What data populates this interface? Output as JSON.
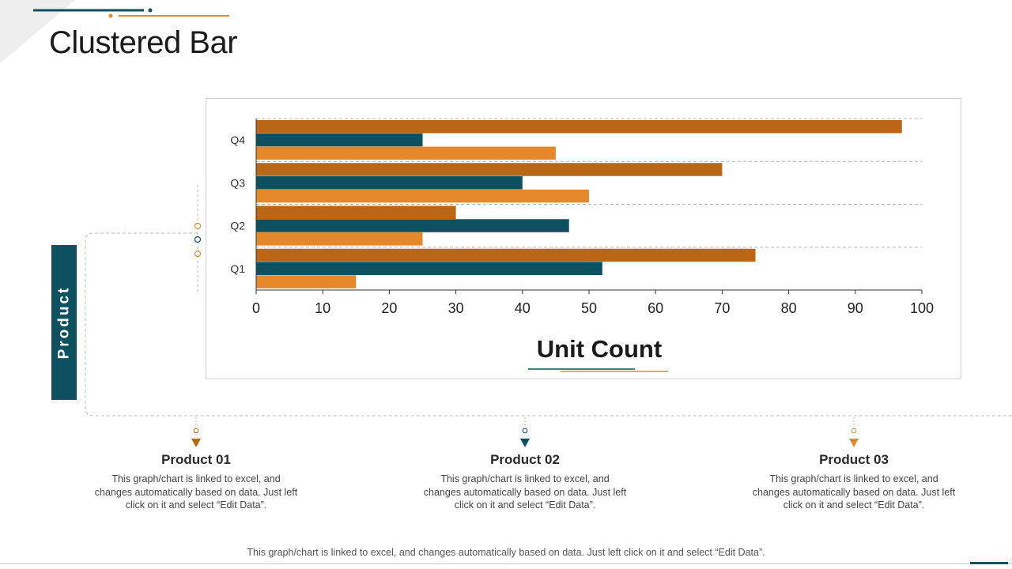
{
  "title": "Clustered Bar",
  "side_label": "Product",
  "colors": {
    "product01": "#b96617",
    "product02": "#0d5060",
    "product03": "#e5882a",
    "gridline": "#b5b5b5",
    "connector": "#b8b8b8"
  },
  "chart_data": {
    "type": "bar",
    "orientation": "horizontal",
    "categories": [
      "Q1",
      "Q2",
      "Q3",
      "Q4"
    ],
    "series": [
      {
        "name": "Product 01",
        "values": [
          75,
          30,
          70,
          97
        ]
      },
      {
        "name": "Product 02",
        "values": [
          52,
          47,
          40,
          25
        ]
      },
      {
        "name": "Product 03",
        "values": [
          15,
          25,
          50,
          45
        ]
      }
    ],
    "xlabel": "Unit Count",
    "xlim": [
      0,
      100
    ],
    "xticks": [
      0,
      10,
      20,
      30,
      40,
      50,
      60,
      70,
      80,
      90,
      100
    ],
    "grid": "dashed horizontal separators"
  },
  "products": [
    {
      "name": "Product 01",
      "text": "This graph/chart is linked to excel, and changes automatically based on data. Just left click on it and select “Edit Data”."
    },
    {
      "name": "Product 02",
      "text": "This graph/chart is linked to excel, and changes automatically based on data. Just left click on it and select “Edit Data”."
    },
    {
      "name": "Product 03",
      "text": "This graph/chart is linked to excel, and changes automatically based on data. Just left click on it and select “Edit Data”."
    }
  ],
  "footer": "This graph/chart is linked to excel, and changes automatically based on data. Just left click on it and select “Edit Data”."
}
